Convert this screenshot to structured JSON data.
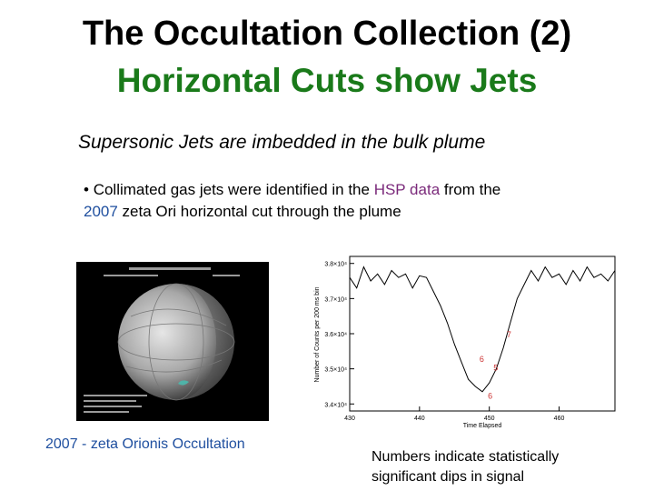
{
  "slide": {
    "title_line1": "The Occultation Collection (2)",
    "title_line2": "Horizontal Cuts show Jets",
    "subtitle": "Supersonic Jets are imbedded in the bulk plume",
    "bullet": {
      "marker": "•",
      "part1": "Collimated gas jets were identified in the ",
      "hsp": "HSP data",
      "part2": " from the",
      "year": "2007",
      "part3": " zeta Ori horizontal cut through the plume"
    },
    "caption_left": {
      "year": "2007",
      "rest": " - zeta Orionis Occultation"
    },
    "caption_right": "Numbers indicate statistically significant dips in signal"
  },
  "chart_data": {
    "type": "line",
    "xlabel": "Time Elapsed",
    "ylabel": "Number of Counts per 200 ms bin",
    "x_ticks": [
      "430",
      "440",
      "450",
      "460"
    ],
    "y_ticks": [
      "3.4×10⁴",
      "3.5×10⁴",
      "3.6×10⁴",
      "3.7×10⁴",
      "3.8×10⁴"
    ],
    "xlim": [
      430,
      468
    ],
    "ylim": [
      33800,
      38200
    ],
    "x": [
      430,
      431,
      432,
      433,
      434,
      435,
      436,
      437,
      438,
      439,
      440,
      441,
      442,
      443,
      444,
      445,
      446,
      447,
      448,
      449,
      450,
      451,
      452,
      453,
      454,
      455,
      456,
      457,
      458,
      459,
      460,
      461,
      462,
      463,
      464,
      465,
      466,
      467,
      468
    ],
    "values": [
      37600,
      37300,
      37900,
      37500,
      37700,
      37400,
      37800,
      37600,
      37700,
      37300,
      37650,
      37600,
      37200,
      36800,
      36300,
      35700,
      35200,
      34700,
      34500,
      34350,
      34600,
      35000,
      35600,
      36300,
      37000,
      37400,
      37800,
      37500,
      37900,
      37600,
      37700,
      37400,
      37800,
      37500,
      37900,
      37600,
      37700,
      37500,
      37800
    ],
    "annotations": [
      "7",
      "6",
      "5",
      "6"
    ],
    "colors": {
      "line": "#000000",
      "annotation": "#cc3333"
    }
  }
}
